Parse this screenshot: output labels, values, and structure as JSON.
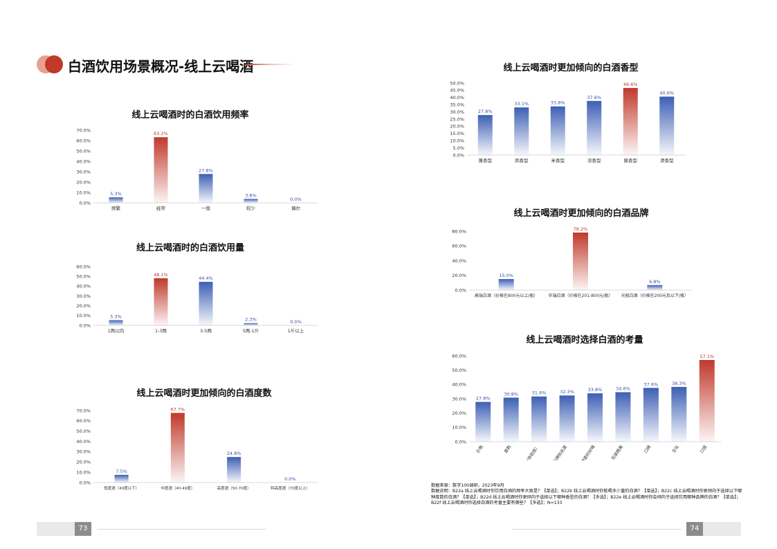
{
  "header": {
    "title": "白酒饮用场景概况-线上云喝酒"
  },
  "charts": [
    {
      "id": "freq",
      "title": "线上云喝酒时的白酒饮用频率",
      "type": "bar",
      "categories": [
        "频繁",
        "经常",
        "一般",
        "较少",
        "偶尔"
      ],
      "values": [
        5.3,
        63.2,
        27.8,
        3.8,
        0.0
      ],
      "value_labels": [
        "5.3%",
        "63.2%",
        "27.8%",
        "3.8%",
        "0.0%"
      ],
      "ylim": [
        0,
        70
      ],
      "yticks": [
        "0.0%",
        "10.0%",
        "20.0%",
        "30.0%",
        "40.0%",
        "50.0%",
        "60.0%",
        "70.0%"
      ],
      "highlight_index": 1
    },
    {
      "id": "amount",
      "title": "线上云喝酒时的白酒饮用量",
      "type": "bar",
      "categories": [
        "1两以内",
        "1-3两",
        "3-5两",
        "5两-1斤",
        "1斤以上"
      ],
      "values": [
        5.3,
        48.1,
        44.4,
        2.3,
        0.0
      ],
      "value_labels": [
        "5.3%",
        "48.1%",
        "44.4%",
        "2.3%",
        "0.0%"
      ],
      "ylim": [
        0,
        60
      ],
      "yticks": [
        "0.0%",
        "10.0%",
        "20.0%",
        "30.0%",
        "40.0%",
        "50.0%",
        "60.0%"
      ],
      "highlight_index": 1
    },
    {
      "id": "degree",
      "title": "线上云喝酒时更加倾向的白酒度数",
      "type": "bar",
      "categories": [
        "低度酒（40度以下）",
        "中度酒（40-49度）",
        "高度酒（50-70度）",
        "特高度酒（70度以上）"
      ],
      "values": [
        7.5,
        67.7,
        24.8,
        0.0
      ],
      "value_labels": [
        "7.5%",
        "67.7%",
        "24.8%",
        "0.0%"
      ],
      "ylim": [
        0,
        70
      ],
      "yticks": [
        "0.0%",
        "10.0%",
        "20.0%",
        "30.0%",
        "40.0%",
        "50.0%",
        "60.0%",
        "70.0%"
      ],
      "highlight_index": 1
    },
    {
      "id": "aroma",
      "title": "线上云喝酒时更加倾向的白酒香型",
      "type": "bar",
      "categories": [
        "兼香型",
        "凤香型",
        "米香型",
        "浓香型",
        "酱香型",
        "清香型"
      ],
      "values": [
        27.8,
        33.1,
        33.8,
        37.6,
        46.6,
        40.6
      ],
      "value_labels": [
        "27.8%",
        "33.1%",
        "33.8%",
        "37.6%",
        "46.6%",
        "40.6%"
      ],
      "ylim": [
        0,
        50
      ],
      "yticks": [
        "0.0%",
        "5.0%",
        "10.0%",
        "15.0%",
        "20.0%",
        "25.0%",
        "30.0%",
        "35.0%",
        "40.0%",
        "45.0%",
        "50.0%"
      ],
      "highlight_index": 4
    },
    {
      "id": "brand",
      "title": "线上云喝酒时更加倾向的白酒品牌",
      "type": "bar",
      "categories": [
        "高端白酒（价格在800元以上/瓶）",
        "中端白酒（价格在201-800元/瓶）",
        "光瓶白酒（价格在200元及以下/瓶）"
      ],
      "values": [
        15.0,
        78.2,
        6.8
      ],
      "value_labels": [
        "15.0%",
        "78.2%",
        "6.8%"
      ],
      "ylim": [
        0,
        80
      ],
      "yticks": [
        "0.0%",
        "20.0%",
        "40.0%",
        "60.0%",
        "80.0%"
      ],
      "highlight_index": 1
    },
    {
      "id": "factors",
      "title": "线上云喝酒时选择白酒的考量",
      "type": "bar",
      "categories": [
        "价格",
        "度数",
        "微醺感（体验感）",
        "品牌知名度",
        "辣度的好喝",
        "包装精美",
        "口碑",
        "文化",
        "口感"
      ],
      "values": [
        27.8,
        30.8,
        31.6,
        32.3,
        33.8,
        34.6,
        37.6,
        38.3,
        57.1
      ],
      "value_labels": [
        "27.8%",
        "30.8%",
        "31.6%",
        "32.3%",
        "33.8%",
        "34.6%",
        "37.6%",
        "38.3%",
        "57.1%"
      ],
      "ylim": [
        0,
        60
      ],
      "yticks": [
        "0.0%",
        "10.0%",
        "20.0%",
        "30.0%",
        "40.0%",
        "50.0%",
        "60.0%"
      ],
      "highlight_index": 8
    }
  ],
  "chart_data": [
    {
      "type": "bar",
      "title": "线上云喝酒时的白酒饮用频率",
      "categories": [
        "频繁",
        "经常",
        "一般",
        "较少",
        "偶尔"
      ],
      "values": [
        5.3,
        63.2,
        27.8,
        3.8,
        0.0
      ],
      "ylim": [
        0,
        70
      ]
    },
    {
      "type": "bar",
      "title": "线上云喝酒时的白酒饮用量",
      "categories": [
        "1两以内",
        "1-3两",
        "3-5两",
        "5两-1斤",
        "1斤以上"
      ],
      "values": [
        5.3,
        48.1,
        44.4,
        2.3,
        0.0
      ],
      "ylim": [
        0,
        60
      ]
    },
    {
      "type": "bar",
      "title": "线上云喝酒时更加倾向的白酒度数",
      "categories": [
        "低度酒（40度以下）",
        "中度酒（40-49度）",
        "高度酒（50-70度）",
        "特高度酒（70度以上）"
      ],
      "values": [
        7.5,
        67.7,
        24.8,
        0.0
      ],
      "ylim": [
        0,
        70
      ]
    },
    {
      "type": "bar",
      "title": "线上云喝酒时更加倾向的白酒香型",
      "categories": [
        "兼香型",
        "凤香型",
        "米香型",
        "浓香型",
        "酱香型",
        "清香型"
      ],
      "values": [
        27.8,
        33.1,
        33.8,
        37.6,
        46.6,
        40.6
      ],
      "ylim": [
        0,
        50
      ]
    },
    {
      "type": "bar",
      "title": "线上云喝酒时更加倾向的白酒品牌",
      "categories": [
        "高端白酒（价格在800元以上/瓶）",
        "中端白酒（价格在201-800元/瓶）",
        "光瓶白酒（价格在200元及以下/瓶）"
      ],
      "values": [
        15.0,
        78.2,
        6.8
      ],
      "ylim": [
        0,
        80
      ]
    },
    {
      "type": "bar",
      "title": "线上云喝酒时选择白酒的考量",
      "categories": [
        "价格",
        "度数",
        "微醺感（体验感）",
        "品牌知名度",
        "辣度的好喝",
        "包装精美",
        "口碑",
        "文化",
        "口感"
      ],
      "values": [
        27.8,
        30.8,
        31.6,
        32.3,
        33.8,
        34.6,
        37.6,
        38.3,
        57.1
      ],
      "ylim": [
        0,
        60
      ]
    }
  ],
  "note": {
    "lines": [
      "数据来源：数字100调研，2023年9月",
      "数据说明：B22a 线上云喝酒时你饮用白酒的频率大致是？【单选】；B22b 线上云喝酒时你能喝多少量的白酒？【单选】；B22c 线上云喝酒时你更倾向于选择以下哪种度数的白酒？【单选】；B22d 线上云喝酒时你更倾向于选择以下哪种香型的白酒？【多选】；B22e 线上云喝酒时你会倾向于选择饮用哪种品牌的白酒？【单选】；B22f 线上云喝酒时你选择白酒的考量主要有哪些？【多选】；N=133"
    ]
  },
  "footer": {
    "left_page": "73",
    "right_page": "74"
  },
  "colors": {
    "blue": "#3d5fb4",
    "red": "#c0392b",
    "blue_label": "#3b4fa0",
    "red_label": "#b03a2e"
  }
}
